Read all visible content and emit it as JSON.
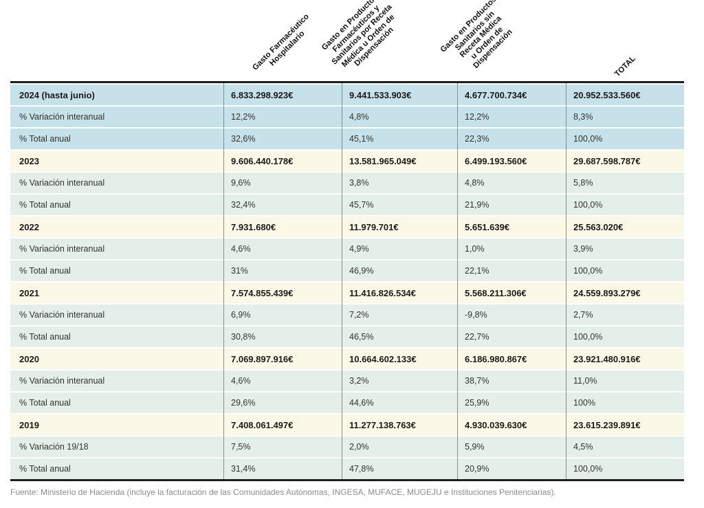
{
  "table": {
    "columns": [
      {
        "label": "Gasto Farmacéutico Hospitalario",
        "lines": [
          "Gasto Farmacéutico",
          "Hospitalario"
        ]
      },
      {
        "label": "Gasto en Productos Farmacéuticos y Sanitarios por Receta Médica u Orden de Dispensación",
        "lines": [
          "Gasto en Productos",
          "Farmacéuticos y",
          "Sanitarios por Receta",
          "Médica u Orden de",
          "Dispensación"
        ]
      },
      {
        "label": "Gasto en Productos Sanitarios sin Receta Médica u Orden de Dispensación",
        "lines": [
          "Gasto en Productos",
          "Sanitarios sin",
          "Receta Médica",
          "u Orden de",
          "Dispensación"
        ]
      },
      {
        "label": "TOTAL",
        "lines": [
          "TOTAL"
        ]
      }
    ],
    "blocks": [
      {
        "theme": "blue",
        "rows": [
          {
            "type": "year",
            "label": "2024 (hasta junio)",
            "values": [
              "6.833.298.923€",
              "9.441.533.903€",
              "4.677.700.734€",
              "20.952.533.560€"
            ]
          },
          {
            "type": "pct",
            "label": "% Variación interanual",
            "values": [
              "12,2%",
              "4,8%",
              "12,2%",
              "8,3%"
            ]
          },
          {
            "type": "pct",
            "label": "% Total anual",
            "values": [
              "32,6%",
              "45,1%",
              "22,3%",
              "100,0%"
            ]
          }
        ]
      },
      {
        "theme": "std",
        "rows": [
          {
            "type": "year",
            "label": "2023",
            "values": [
              "9.606.440.178€",
              "13.581.965.049€",
              "6.499.193.560€",
              "29.687.598.787€"
            ]
          },
          {
            "type": "pct",
            "label": "% Variación interanual",
            "values": [
              "9,6%",
              "3,8%",
              "4,8%",
              "5,8%"
            ]
          },
          {
            "type": "pct",
            "label": "% Total anual",
            "values": [
              "32,4%",
              "45,7%",
              "21,9%",
              "100,0%"
            ]
          }
        ]
      },
      {
        "theme": "std",
        "rows": [
          {
            "type": "year",
            "label": "2022",
            "values": [
              "7.931.680€",
              "11.979.701€",
              "5.651.639€",
              "25.563.020€"
            ]
          },
          {
            "type": "pct",
            "label": "% Variación interanual",
            "values": [
              "4,6%",
              "4,9%",
              "1,0%",
              "3,9%"
            ]
          },
          {
            "type": "pct",
            "label": "% Total anual",
            "values": [
              "31%",
              "46,9%",
              "22,1%",
              "100,0%"
            ]
          }
        ]
      },
      {
        "theme": "std",
        "rows": [
          {
            "type": "year",
            "label": "2021",
            "values": [
              "7.574.855.439€",
              "11.416.826.534€",
              "5.568.211.306€",
              "24.559.893.279€"
            ]
          },
          {
            "type": "pct",
            "label": "% Variación interanual",
            "values": [
              "6,9%",
              "7,2%",
              "-9,8%",
              "2,7%"
            ]
          },
          {
            "type": "pct",
            "label": "% Total anual",
            "values": [
              "30,8%",
              "46,5%",
              "22,7%",
              "100,0%"
            ]
          }
        ]
      },
      {
        "theme": "std",
        "rows": [
          {
            "type": "year",
            "label": "2020",
            "values": [
              "7.069.897.916€",
              "10.664.602.133€",
              "6.186.980.867€",
              "23.921.480.916€"
            ]
          },
          {
            "type": "pct",
            "label": "% Variación interanual",
            "values": [
              "4,6%",
              "3,2%",
              "38,7%",
              "11,0%"
            ]
          },
          {
            "type": "pct",
            "label": "% Total anual",
            "values": [
              "29,6%",
              "44,6%",
              "25,9%",
              "100%"
            ]
          }
        ]
      },
      {
        "theme": "std",
        "rows": [
          {
            "type": "year",
            "label": "2019",
            "values": [
              "7.408.061.497€",
              "11.277.138.763€",
              "4.930.039.630€",
              "23.615.239.891€"
            ]
          },
          {
            "type": "pct",
            "label": "% Variación 19/18",
            "values": [
              "7,5%",
              "2,0%",
              "5,9%",
              "4,5%"
            ]
          },
          {
            "type": "pct",
            "label": "% Total anual",
            "values": [
              "31,4%",
              "47,8%",
              "20,9%",
              "100,0%"
            ]
          }
        ]
      }
    ]
  },
  "footer": {
    "source": "Fuente: Ministerio de Hacienda (incluye la facturación de las Comunidades Autónomas, INGESA, MUFACE, MUGEJU e Instituciones Penitenciarias)."
  },
  "colors": {
    "highlight_blue": "#c6e1ea",
    "year_cream": "#fbf8e7",
    "pct_pale_green": "#e5efe9",
    "border_dark": "#1c1c1b",
    "column_line": "#8a8a8a",
    "footer_gray": "#8c8c8c"
  },
  "chart_data": {
    "type": "table",
    "columns": [
      "",
      "Gasto Farmacéutico Hospitalario",
      "Gasto en Productos Farmacéuticos y Sanitarios por Receta Médica u Orden de Dispensación",
      "Gasto en Productos Sanitarios sin Receta Médica u Orden de Dispensación",
      "TOTAL"
    ],
    "rows": [
      [
        "2024 (hasta junio)",
        "6.833.298.923€",
        "9.441.533.903€",
        "4.677.700.734€",
        "20.952.533.560€"
      ],
      [
        "% Variación interanual",
        "12,2%",
        "4,8%",
        "12,2%",
        "8,3%"
      ],
      [
        "% Total anual",
        "32,6%",
        "45,1%",
        "22,3%",
        "100,0%"
      ],
      [
        "2023",
        "9.606.440.178€",
        "13.581.965.049€",
        "6.499.193.560€",
        "29.687.598.787€"
      ],
      [
        "% Variación interanual",
        "9,6%",
        "3,8%",
        "4,8%",
        "5,8%"
      ],
      [
        "% Total anual",
        "32,4%",
        "45,7%",
        "21,9%",
        "100,0%"
      ],
      [
        "2022",
        "7.931.680€",
        "11.979.701€",
        "5.651.639€",
        "25.563.020€"
      ],
      [
        "% Variación interanual",
        "4,6%",
        "4,9%",
        "1,0%",
        "3,9%"
      ],
      [
        "% Total anual",
        "31%",
        "46,9%",
        "22,1%",
        "100,0%"
      ],
      [
        "2021",
        "7.574.855.439€",
        "11.416.826.534€",
        "5.568.211.306€",
        "24.559.893.279€"
      ],
      [
        "% Variación interanual",
        "6,9%",
        "7,2%",
        "-9,8%",
        "2,7%"
      ],
      [
        "% Total anual",
        "30,8%",
        "46,5%",
        "22,7%",
        "100,0%"
      ],
      [
        "2020",
        "7.069.897.916€",
        "10.664.602.133€",
        "6.186.980.867€",
        "23.921.480.916€"
      ],
      [
        "% Variación interanual",
        "4,6%",
        "3,2%",
        "38,7%",
        "11,0%"
      ],
      [
        "% Total anual",
        "29,6%",
        "44,6%",
        "25,9%",
        "100%"
      ],
      [
        "2019",
        "7.408.061.497€",
        "11.277.138.763€",
        "4.930.039.630€",
        "23.615.239.891€"
      ],
      [
        "% Variación 19/18",
        "7,5%",
        "2,0%",
        "5,9%",
        "4,5%"
      ],
      [
        "% Total anual",
        "31,4%",
        "47,8%",
        "20,9%",
        "100,0%"
      ]
    ],
    "title": "",
    "legend_position": "none",
    "notes": "Yearly pharmaceutical and sanitary-product expenditure table; 2024 block highlighted in blue"
  }
}
